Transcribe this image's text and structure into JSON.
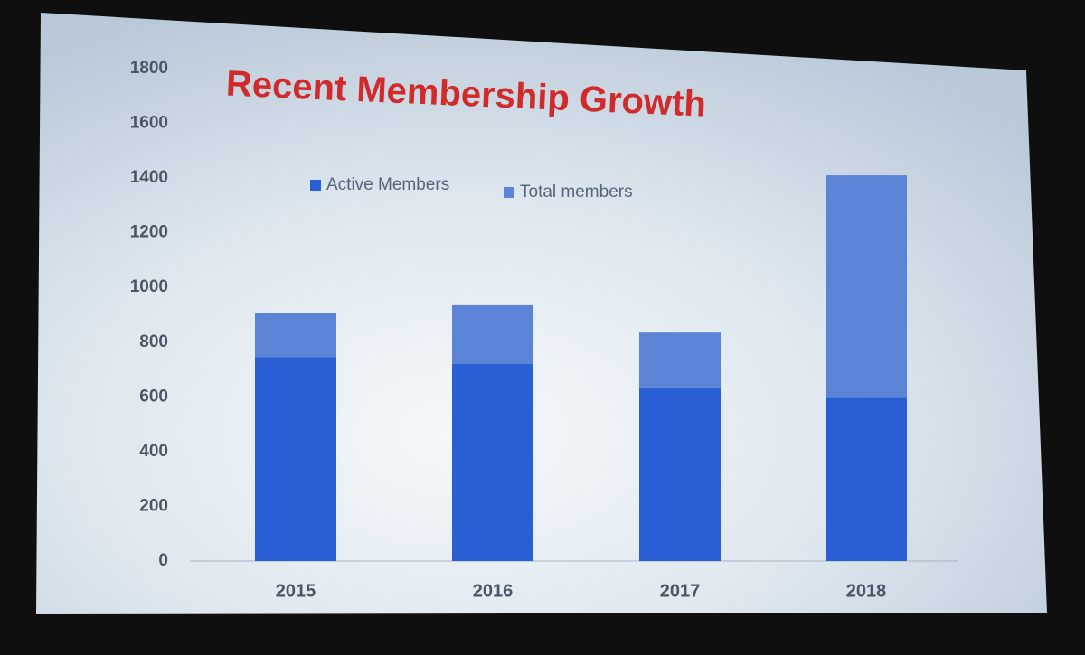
{
  "chart_data": {
    "type": "bar",
    "stacked": true,
    "title": "Recent Membership Growth",
    "categories": [
      "2015",
      "2016",
      "2017",
      "2018"
    ],
    "series": [
      {
        "name": "Active Members",
        "color": "#2a5ed4",
        "values": [
          745,
          720,
          635,
          600
        ]
      },
      {
        "name": "Total members",
        "color": "#5c84d6",
        "values": [
          160,
          215,
          200,
          810
        ]
      }
    ],
    "ylim": [
      0,
      1800
    ],
    "yticks": [
      0,
      200,
      400,
      600,
      800,
      1000,
      1200,
      1400,
      1600,
      1800
    ],
    "grid": false,
    "legend": "top"
  }
}
